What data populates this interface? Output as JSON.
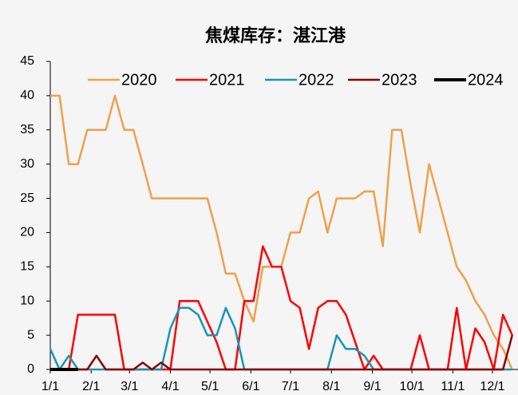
{
  "chart_data": {
    "type": "line",
    "title": "焦煤库存：湛江港",
    "x": [
      1,
      8,
      15,
      22,
      29,
      36,
      43,
      50,
      57,
      64,
      71,
      78,
      85,
      92,
      99,
      106,
      113,
      120,
      127,
      134,
      141,
      148,
      155,
      162,
      169,
      176,
      183,
      190,
      197,
      204,
      211,
      218,
      225,
      232,
      239,
      246,
      253,
      260,
      267,
      274,
      281,
      288,
      295,
      302,
      309,
      316,
      323,
      330,
      337,
      344,
      351
    ],
    "xlim": [
      1,
      356
    ],
    "xticks": [
      {
        "value": 1,
        "label": "1/1"
      },
      {
        "value": 32,
        "label": "2/1"
      },
      {
        "value": 61,
        "label": "3/1"
      },
      {
        "value": 92,
        "label": "4/1"
      },
      {
        "value": 122,
        "label": "5/1"
      },
      {
        "value": 153,
        "label": "6/1"
      },
      {
        "value": 183,
        "label": "7/1"
      },
      {
        "value": 214,
        "label": "8/1"
      },
      {
        "value": 245,
        "label": "9/1"
      },
      {
        "value": 275,
        "label": "10/1"
      },
      {
        "value": 306,
        "label": "11/1"
      },
      {
        "value": 336,
        "label": "12/1"
      }
    ],
    "ylim": [
      0,
      45
    ],
    "yticks": [
      0,
      5,
      10,
      15,
      20,
      25,
      30,
      35,
      40,
      45
    ],
    "legend": "top",
    "series": [
      {
        "name": "2020",
        "color": "#f0a04b",
        "width": 2.5,
        "values": [
          40,
          40,
          30,
          30,
          35,
          35,
          35,
          40,
          35,
          35,
          30,
          25,
          25,
          25,
          25,
          25,
          25,
          25,
          20,
          14,
          14,
          10,
          7,
          15,
          15,
          15,
          20,
          20,
          25,
          26,
          20,
          25,
          25,
          25,
          26,
          26,
          18,
          35,
          35,
          27,
          20,
          30,
          25,
          20,
          15,
          13,
          10,
          8,
          5,
          3,
          0
        ]
      },
      {
        "name": "2021",
        "color": "#ff0000",
        "width": 2.5,
        "values": [
          0,
          0,
          0,
          8,
          8,
          8,
          8,
          8,
          0,
          0,
          0,
          0,
          0,
          0,
          10,
          10,
          10,
          7,
          4,
          0,
          0,
          10,
          10,
          18,
          15,
          15,
          10,
          9,
          3,
          9,
          10,
          10,
          8,
          4,
          0,
          2,
          0,
          0,
          0,
          0,
          5,
          0,
          0,
          0,
          9,
          0,
          6,
          4,
          0,
          8,
          5
        ]
      },
      {
        "name": "2022",
        "color": "#1a94b8",
        "width": 2.5,
        "values": [
          3,
          0,
          2,
          0,
          0,
          0,
          0,
          0,
          0,
          0,
          0,
          0,
          0,
          6,
          9,
          9,
          8,
          5,
          5,
          9,
          6,
          0,
          0,
          0,
          0,
          0,
          0,
          0,
          0,
          0,
          0,
          5,
          3,
          3,
          2,
          0,
          0,
          0,
          0,
          0,
          0,
          0,
          0,
          0,
          0,
          0,
          0,
          0,
          0,
          0,
          0
        ]
      },
      {
        "name": "2023",
        "color": "#8b0000",
        "width": 2.5,
        "values": [
          0,
          0,
          0,
          0,
          0,
          2,
          0,
          0,
          0,
          0,
          1,
          0,
          1,
          0,
          0,
          0,
          0,
          0,
          0,
          0,
          0,
          0,
          0,
          0,
          0,
          0,
          0,
          0,
          0,
          0,
          0,
          0,
          0,
          0,
          0,
          0,
          0,
          0,
          0,
          0,
          0,
          0,
          0,
          0,
          0,
          0,
          0,
          0,
          0,
          0,
          5
        ]
      },
      {
        "name": "2024",
        "color": "#000000",
        "width": 4,
        "values": [
          0,
          0,
          0,
          0,
          null,
          null,
          null,
          null,
          null,
          null,
          null,
          null,
          null,
          null,
          null,
          null,
          null,
          null,
          null,
          null,
          null,
          null,
          null,
          null,
          null,
          null,
          null,
          null,
          null,
          null,
          null,
          null,
          null,
          null,
          null,
          null,
          null,
          null,
          null,
          null,
          null,
          null,
          null,
          null,
          null,
          null,
          null,
          null,
          null,
          null,
          null
        ]
      }
    ]
  }
}
